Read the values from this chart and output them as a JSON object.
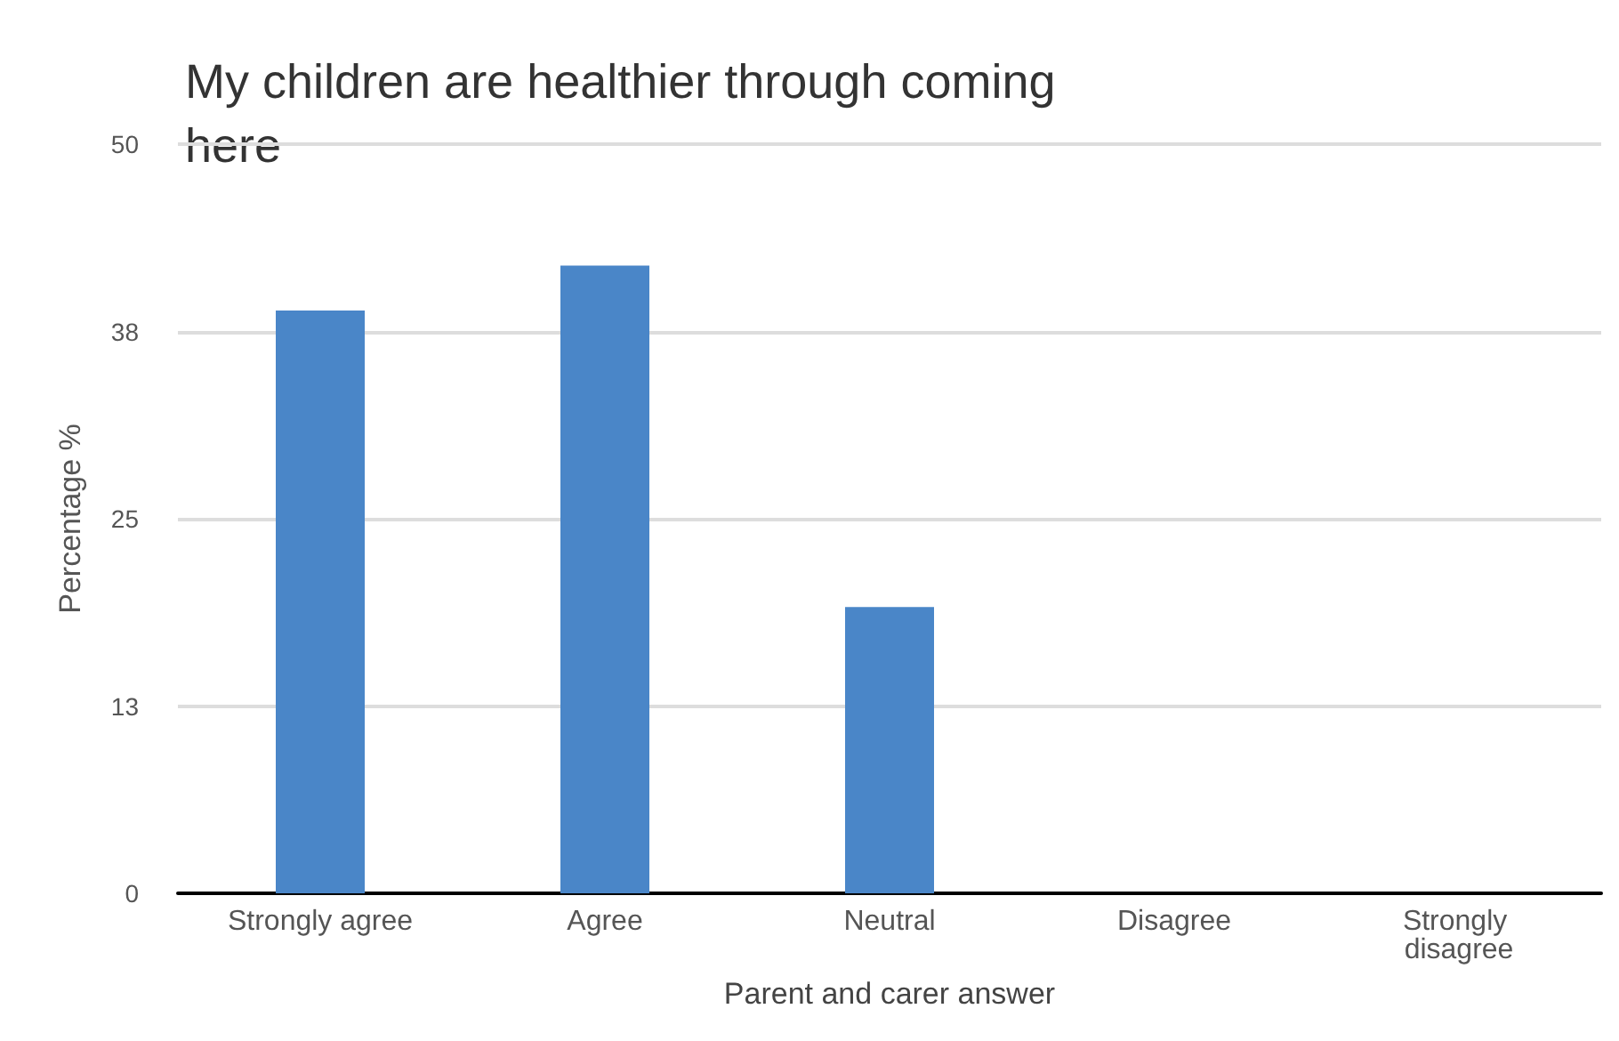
{
  "chart_data": {
    "type": "bar",
    "title": "My children are healthier through coming here",
    "xlabel": "Parent and carer answer",
    "ylabel": "Percentage %",
    "categories": [
      "Strongly agree",
      "Agree",
      "Neutral",
      "Disagree",
      "Strongly disagree"
    ],
    "series": [
      {
        "color": "#4a86c8",
        "values": [
          38.9,
          41.9,
          19.1,
          0,
          0
        ]
      }
    ],
    "ylim": [
      0,
      50
    ],
    "yticks": [
      0,
      {
        "value": 12.5,
        "label": "13"
      },
      25,
      {
        "value": 37.5,
        "label": "38"
      },
      50
    ],
    "grid": "y"
  }
}
